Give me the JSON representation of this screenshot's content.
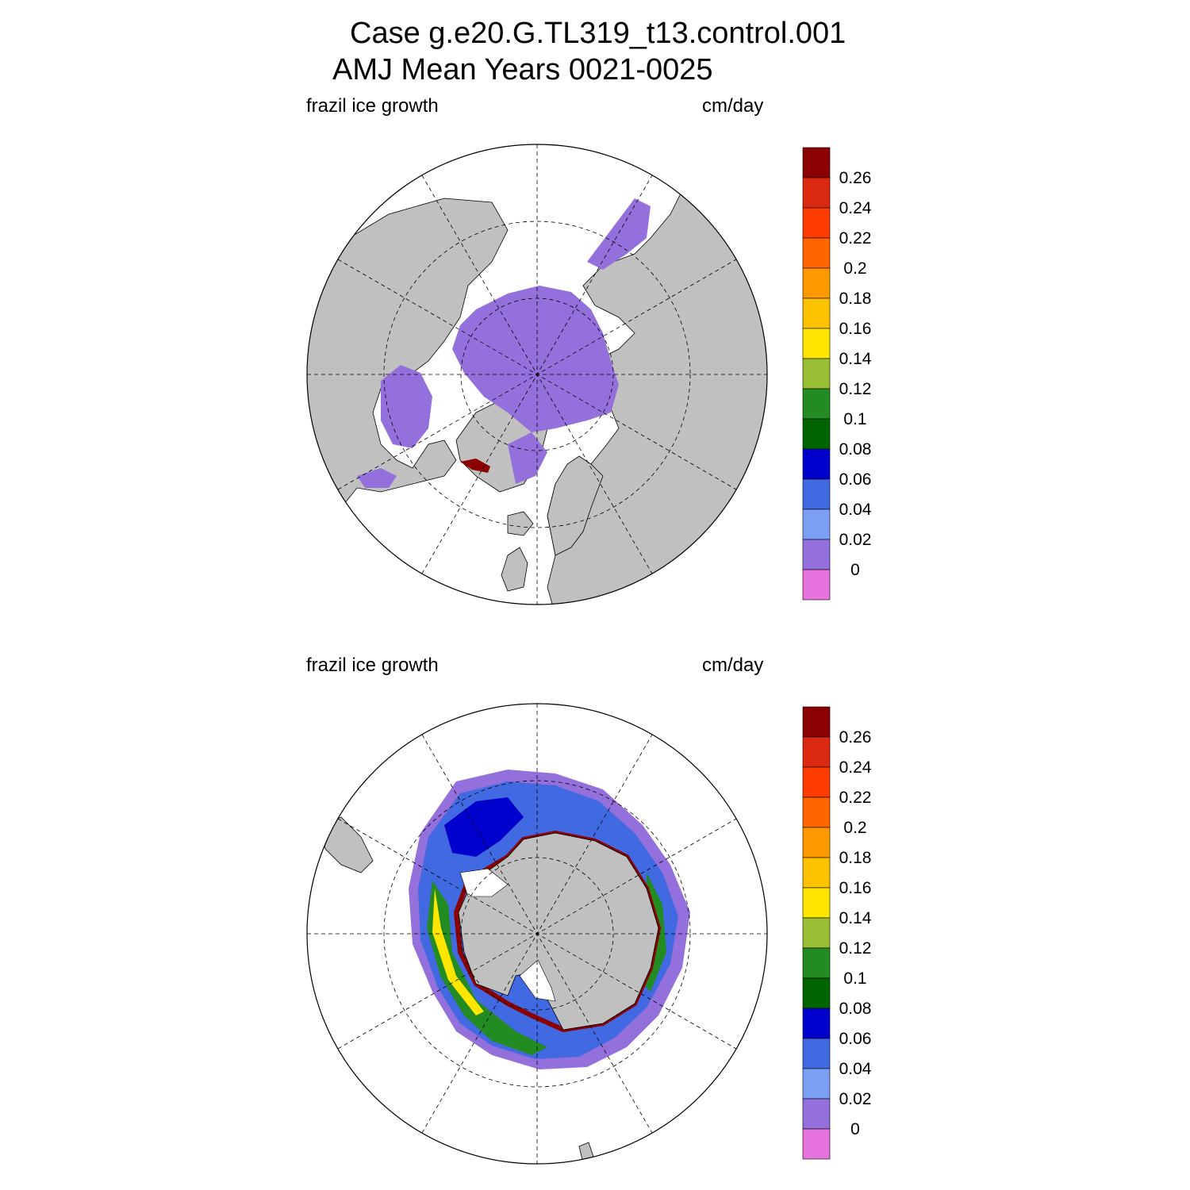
{
  "title": {
    "line1": "Case g.e20.G.TL319_t13.control.001",
    "line2": "AMJ Mean   Years 0021-0025"
  },
  "panels": [
    {
      "variable_label": "frazil ice growth",
      "units_label": "cm/day",
      "hemisphere": "north"
    },
    {
      "variable_label": "frazil ice growth",
      "units_label": "cm/day",
      "hemisphere": "south"
    }
  ],
  "colorbar": {
    "levels": [
      "0.26",
      "0.24",
      "0.22",
      "0.2",
      "0.18",
      "0.16",
      "0.14",
      "0.12",
      "0.1",
      "0.08",
      "0.06",
      "0.04",
      "0.02",
      "0"
    ],
    "colors": [
      "#8b0000",
      "#dc2a12",
      "#ff3c00",
      "#ff6600",
      "#ff9900",
      "#ffc200",
      "#ffe500",
      "#9abf35",
      "#228b22",
      "#006400",
      "#0000cd",
      "#4169e1",
      "#7b9ff2",
      "#9370db",
      "#e673de"
    ]
  },
  "colors": {
    "land": "#c0c0c0",
    "ocean": "#ffffff",
    "ice_zero": "#9370db"
  }
}
